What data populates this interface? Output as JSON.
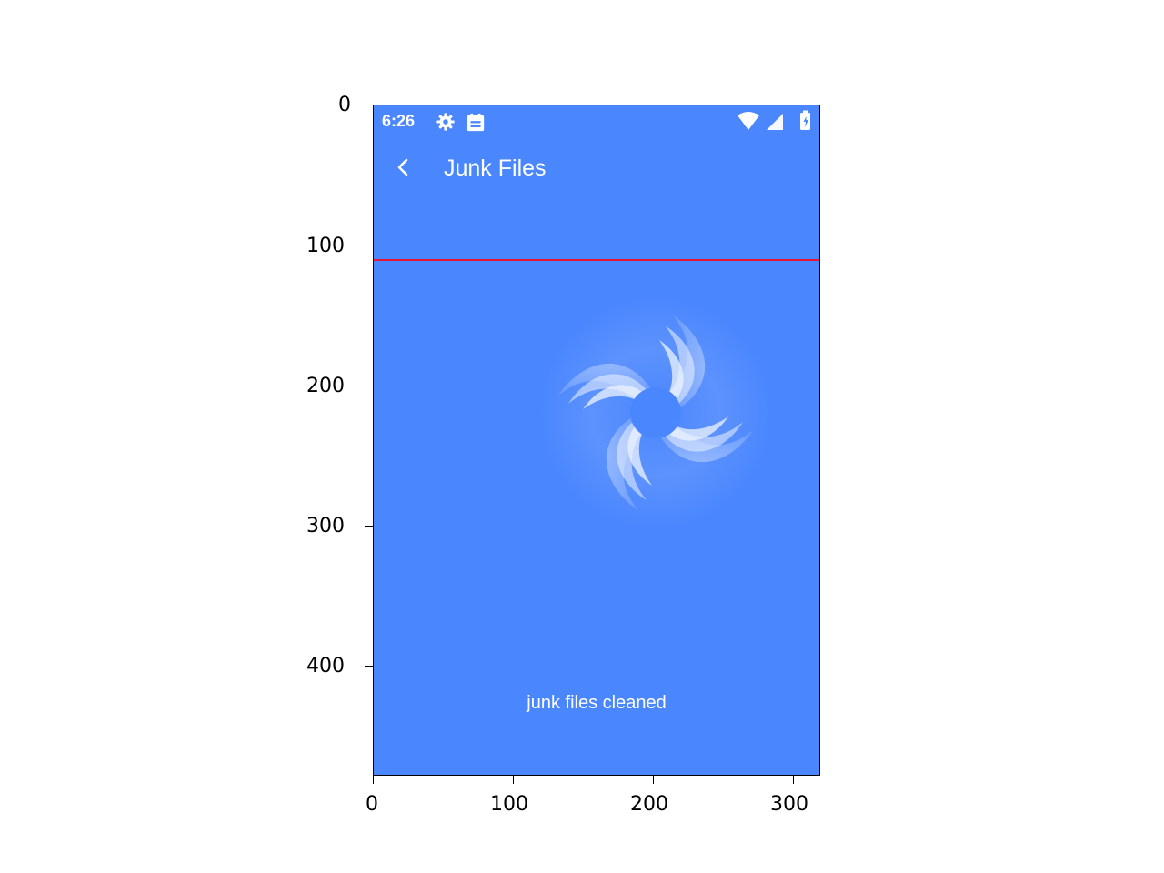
{
  "status_bar": {
    "time": "6:26",
    "icons": [
      "gear-icon",
      "calendar-icon",
      "wifi-icon",
      "signal-icon",
      "battery-icon"
    ]
  },
  "app_bar": {
    "back_icon": "chevron-left-icon",
    "title": "Junk Files"
  },
  "main": {
    "illustration": "swirl-icon",
    "caption": "junk files cleaned"
  },
  "colors": {
    "background": "#4a86fe",
    "text": "#ffffff",
    "overlay_line": "#e8143a"
  },
  "axes": {
    "x_ticks": [
      "0",
      "100",
      "200",
      "300"
    ],
    "y_ticks": [
      "0",
      "100",
      "200",
      "300",
      "400"
    ]
  }
}
